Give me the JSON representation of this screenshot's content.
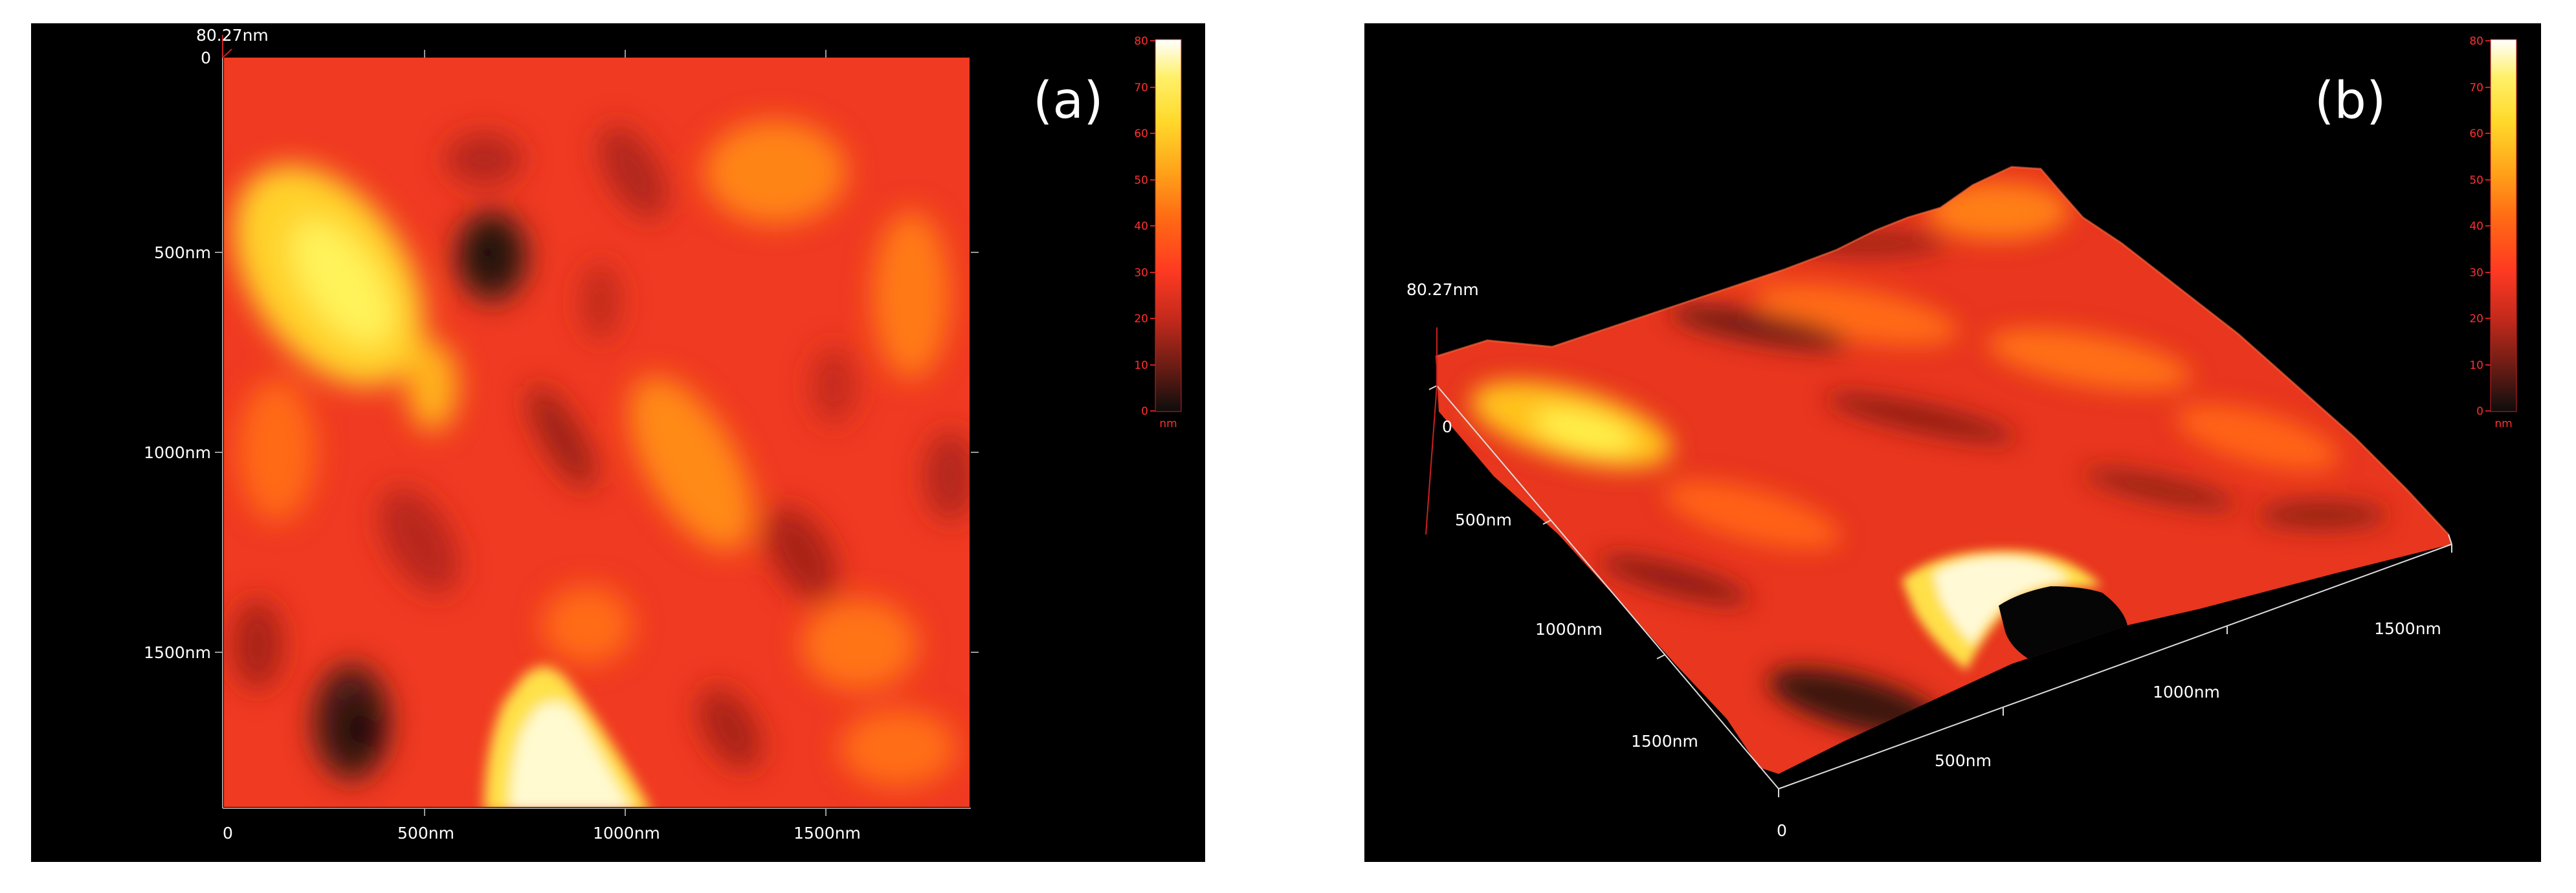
{
  "panel_a": {
    "label": "(a)",
    "height_tag": "80.27nm",
    "y_ticks": [
      "0",
      "500nm",
      "1000nm",
      "1500nm"
    ],
    "x_ticks": [
      "0",
      "500nm",
      "1000nm",
      "1500nm"
    ]
  },
  "panel_b": {
    "label": "(b)",
    "height_tag": "80.27nm",
    "left_axis_ticks": [
      "0",
      "500nm",
      "1000nm",
      "1500nm"
    ],
    "front_axis_ticks": [
      "0",
      "500nm",
      "1000nm",
      "1500nm"
    ]
  },
  "colorbar": {
    "ticks": [
      "80",
      "70",
      "60",
      "50",
      "40",
      "30",
      "20",
      "10",
      "0"
    ],
    "unit": "nm",
    "colormap": [
      "#0d0d0d",
      "#6a1c14",
      "#c42a1c",
      "#ff3a22",
      "#ff6a14",
      "#ffa51a",
      "#ffd92a",
      "#fff06a",
      "#ffffff"
    ]
  }
}
